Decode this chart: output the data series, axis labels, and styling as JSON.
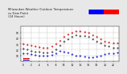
{
  "title": "Milwaukee Weather Outdoor Temperature\nvs Dew Point\n(24 Hours)",
  "title_fontsize": 2.8,
  "background_color": "#e8e8e8",
  "plot_bg": "#ffffff",
  "hours": [
    0,
    1,
    2,
    3,
    4,
    5,
    6,
    7,
    8,
    9,
    10,
    11,
    12,
    13,
    14,
    15,
    16,
    17,
    18,
    19,
    20,
    21,
    22,
    23
  ],
  "temp": [
    30,
    29,
    27,
    26,
    25,
    24,
    24,
    26,
    30,
    36,
    42,
    47,
    50,
    52,
    52,
    51,
    49,
    46,
    42,
    38,
    35,
    33,
    32,
    31
  ],
  "dew": [
    14,
    13,
    12,
    11,
    10,
    10,
    10,
    11,
    14,
    18,
    17,
    15,
    12,
    10,
    9,
    8,
    7,
    7,
    8,
    10,
    12,
    13,
    14,
    15
  ],
  "feel": [
    22,
    20,
    18,
    17,
    16,
    15,
    15,
    17,
    21,
    28,
    34,
    39,
    43,
    45,
    44,
    44,
    42,
    39,
    35,
    31,
    28,
    26,
    24,
    23
  ],
  "temp_color": "#cc0000",
  "dew_color": "#0000cc",
  "feel_color": "#222222",
  "grid_color": "#999999",
  "legend_temp_color": "#ff0000",
  "legend_dew_color": "#0000ff",
  "ylim": [
    0,
    60
  ],
  "xlim": [
    -0.5,
    23.5
  ],
  "yticks": [
    10,
    20,
    30,
    40,
    50
  ],
  "xticks": [
    0,
    2,
    4,
    6,
    8,
    10,
    12,
    14,
    16,
    18,
    20,
    22
  ],
  "marker_size": 1.0
}
